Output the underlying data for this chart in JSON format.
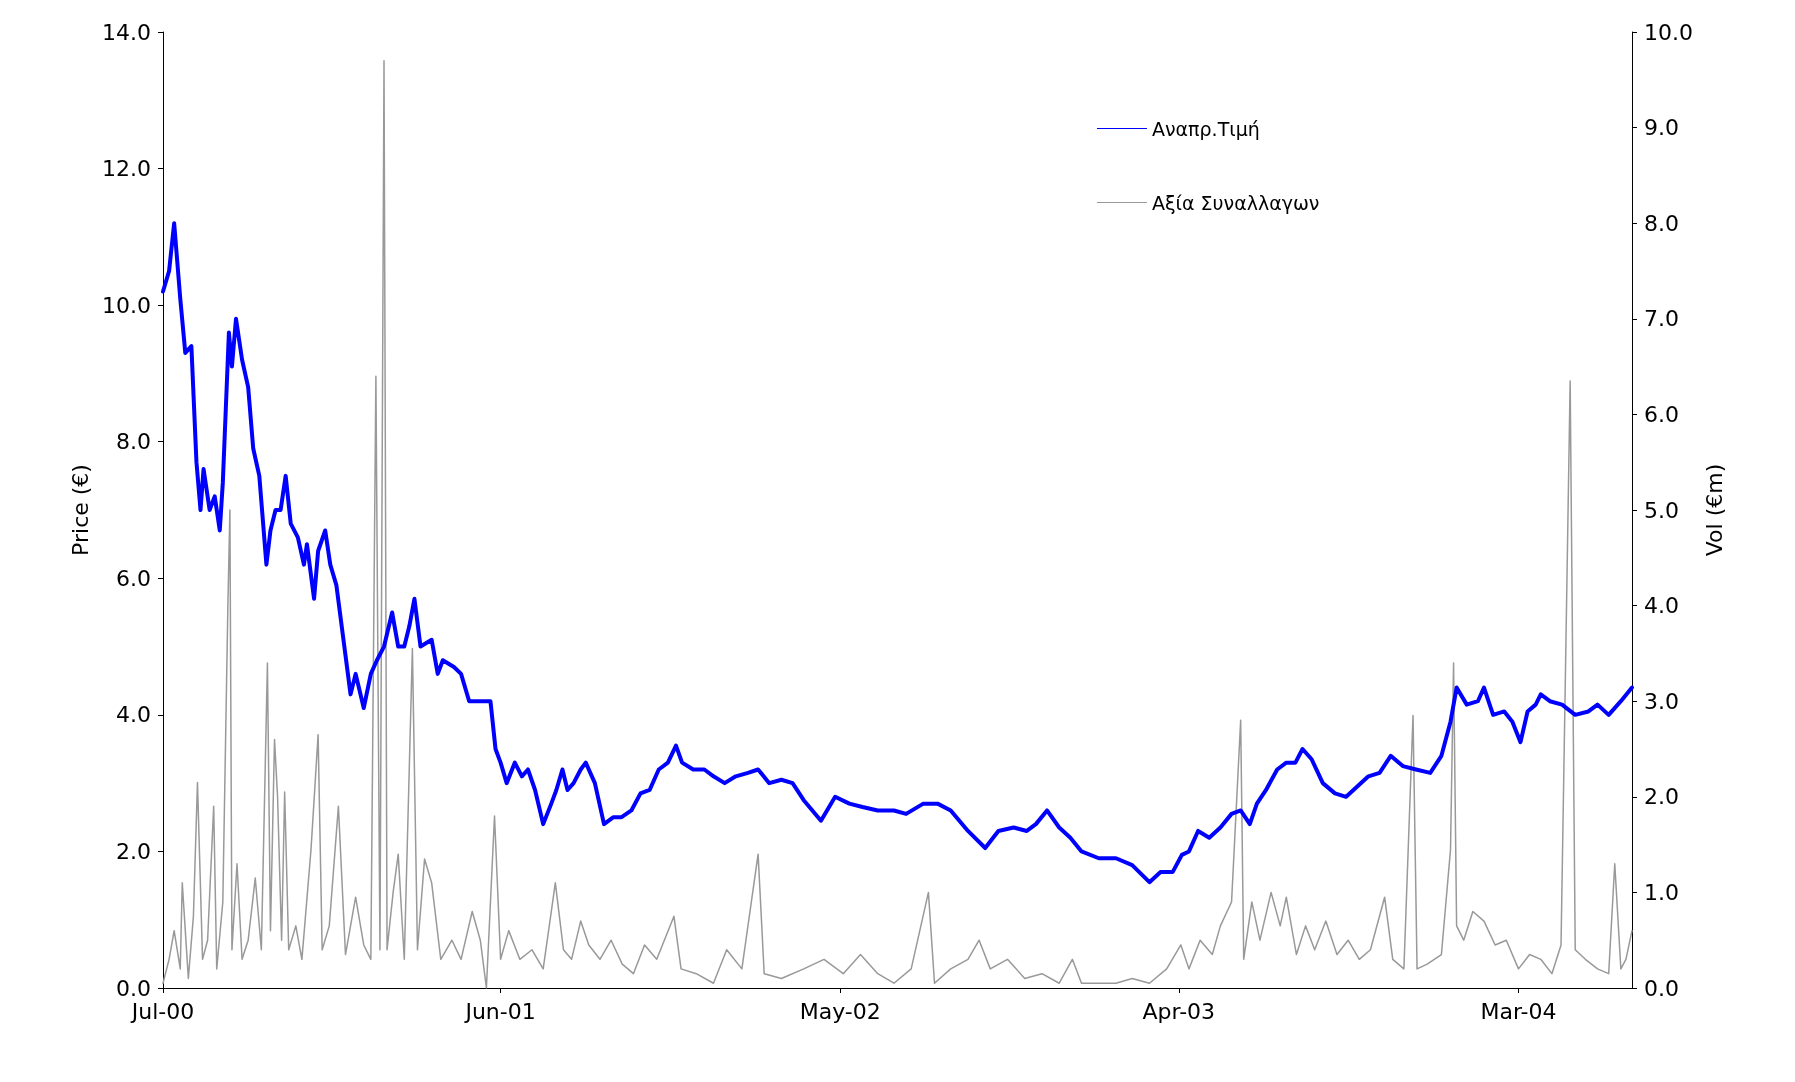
{
  "chart_data": {
    "type": "line",
    "ylabel": "Price (€)",
    "y2label": "Vol (€m)",
    "xlim": [
      "2000-07-03",
      "2004-06-21"
    ],
    "xticks": [
      {
        "value": "2000-07-03",
        "label": "Jul-00"
      },
      {
        "value": "2001-06-01",
        "label": "Jun-01"
      },
      {
        "value": "2002-05-02",
        "label": "May-02"
      },
      {
        "value": "2003-04-01",
        "label": "Apr-03"
      },
      {
        "value": "2004-03-01",
        "label": "Mar-04"
      }
    ],
    "ylim": [
      0,
      14
    ],
    "yticks": [
      {
        "value": 0,
        "label": "0.0"
      },
      {
        "value": 2,
        "label": "2.0"
      },
      {
        "value": 4,
        "label": "4.0"
      },
      {
        "value": 6,
        "label": "6.0"
      },
      {
        "value": 8,
        "label": "8.0"
      },
      {
        "value": 10,
        "label": "10.0"
      },
      {
        "value": 12,
        "label": "12.0"
      },
      {
        "value": 14,
        "label": "14.0"
      }
    ],
    "y2lim": [
      0,
      10
    ],
    "y2ticks": [
      {
        "value": 0,
        "label": "0.0"
      },
      {
        "value": 1,
        "label": "1.0"
      },
      {
        "value": 2,
        "label": "2.0"
      },
      {
        "value": 3,
        "label": "3.0"
      },
      {
        "value": 4,
        "label": "4.0"
      },
      {
        "value": 5,
        "label": "5.0"
      },
      {
        "value": 6,
        "label": "6.0"
      },
      {
        "value": 7,
        "label": "7.0"
      },
      {
        "value": 8,
        "label": "8.0"
      },
      {
        "value": 9,
        "label": "9.0"
      },
      {
        "value": 10,
        "label": "10.0"
      }
    ],
    "grid": false,
    "legend": "top right",
    "marker": "none",
    "line_style": "solid",
    "series": [
      {
        "name": "Αναπρ.Τιμή",
        "color": "#0000ff",
        "x": [
          "2000-07-03",
          "2000-07-09",
          "2000-07-14",
          "2000-07-20",
          "2000-07-25",
          "2000-07-31",
          "2000-08-05",
          "2000-08-09",
          "2000-08-12",
          "2000-08-18",
          "2000-08-23",
          "2000-08-28",
          "2000-08-31",
          "2000-09-06",
          "2000-09-09",
          "2000-09-13",
          "2000-09-19",
          "2000-09-25",
          "2000-09-30",
          "2000-10-06",
          "2000-10-13",
          "2000-10-17",
          "2000-10-22",
          "2000-10-27",
          "2000-11-01",
          "2000-11-06",
          "2000-11-13",
          "2000-11-19",
          "2000-11-22",
          "2000-11-29",
          "2000-12-03",
          "2000-12-10",
          "2000-12-15",
          "2000-12-21",
          "2000-12-28",
          "2001-01-04",
          "2001-01-09",
          "2001-01-17",
          "2001-01-24",
          "2001-01-30",
          "2001-02-06",
          "2001-02-14",
          "2001-02-20",
          "2001-02-26",
          "2001-03-03",
          "2001-03-08",
          "2001-03-14",
          "2001-03-25",
          "2001-03-31",
          "2001-04-05",
          "2001-04-16",
          "2001-04-23",
          "2001-05-01",
          "2001-05-09",
          "2001-05-22",
          "2001-05-27",
          "2001-06-01",
          "2001-06-07",
          "2001-06-15",
          "2001-06-22",
          "2001-06-28",
          "2001-07-05",
          "2001-07-13",
          "2001-07-21",
          "2001-07-26",
          "2001-08-01",
          "2001-08-06",
          "2001-08-12",
          "2001-08-19",
          "2001-08-24",
          "2001-09-02",
          "2001-09-11",
          "2001-09-20",
          "2001-09-28",
          "2001-10-08",
          "2001-10-17",
          "2001-10-26",
          "2001-11-04",
          "2001-11-13",
          "2001-11-21",
          "2001-11-27",
          "2001-12-08",
          "2001-12-19",
          "2001-12-28",
          "2002-01-08",
          "2002-01-19",
          "2002-01-31",
          "2002-02-10",
          "2002-02-21",
          "2002-03-05",
          "2002-03-16",
          "2002-03-27",
          "2002-04-13",
          "2002-04-27",
          "2002-05-11",
          "2002-05-24",
          "2002-06-08",
          "2002-06-24",
          "2002-07-06",
          "2002-07-23",
          "2002-08-06",
          "2002-08-19",
          "2002-09-05",
          "2002-09-22",
          "2002-10-05",
          "2002-10-20",
          "2002-11-02",
          "2002-11-11",
          "2002-11-22",
          "2002-12-04",
          "2002-12-15",
          "2002-12-26",
          "2003-01-12",
          "2003-01-29",
          "2003-02-14",
          "2003-03-03",
          "2003-03-14",
          "2003-03-26",
          "2003-04-04",
          "2003-04-11",
          "2003-04-20",
          "2003-05-01",
          "2003-05-12",
          "2003-05-23",
          "2003-06-01",
          "2003-06-10",
          "2003-06-17",
          "2003-06-26",
          "2003-07-07",
          "2003-07-16",
          "2003-07-25",
          "2003-08-01",
          "2003-08-10",
          "2003-08-21",
          "2003-09-02",
          "2003-09-13",
          "2003-09-24",
          "2003-10-05",
          "2003-10-16",
          "2003-10-27",
          "2003-11-08",
          "2003-11-21",
          "2003-12-05",
          "2003-12-16",
          "2003-12-25",
          "2003-12-31",
          "2004-01-10",
          "2004-01-21",
          "2004-01-27",
          "2004-02-05",
          "2004-02-16",
          "2004-02-24",
          "2004-03-03",
          "2004-03-10",
          "2004-03-18",
          "2004-03-23",
          "2004-04-01",
          "2004-04-13",
          "2004-04-26",
          "2004-05-09",
          "2004-05-18",
          "2004-05-29",
          "2004-06-10",
          "2004-06-21"
        ],
        "values": [
          10.2,
          10.5,
          11.2,
          10.1,
          9.3,
          9.4,
          7.7,
          7.0,
          7.6,
          7.0,
          7.2,
          6.7,
          7.4,
          9.6,
          9.1,
          9.8,
          9.2,
          8.8,
          7.9,
          7.5,
          6.2,
          6.7,
          7.0,
          7.0,
          7.5,
          6.8,
          6.6,
          6.2,
          6.5,
          5.7,
          6.4,
          6.7,
          6.2,
          5.9,
          5.1,
          4.3,
          4.6,
          4.1,
          4.6,
          4.8,
          5.0,
          5.5,
          5.0,
          5.0,
          5.3,
          5.7,
          5.0,
          5.1,
          4.6,
          4.8,
          4.7,
          4.6,
          4.2,
          4.2,
          4.2,
          3.5,
          3.3,
          3.0,
          3.3,
          3.1,
          3.2,
          2.9,
          2.4,
          2.7,
          2.9,
          3.2,
          2.9,
          3.0,
          3.2,
          3.3,
          3.0,
          2.4,
          2.5,
          2.5,
          2.6,
          2.85,
          2.9,
          3.2,
          3.3,
          3.55,
          3.3,
          3.2,
          3.2,
          3.1,
          3.0,
          3.1,
          3.15,
          3.2,
          3.0,
          3.05,
          3.0,
          2.75,
          2.45,
          2.8,
          2.7,
          2.65,
          2.6,
          2.6,
          2.55,
          2.7,
          2.7,
          2.6,
          2.3,
          2.05,
          2.3,
          2.35,
          2.3,
          2.4,
          2.6,
          2.35,
          2.2,
          2.0,
          1.9,
          1.9,
          1.8,
          1.55,
          1.7,
          1.7,
          1.95,
          2.0,
          2.3,
          2.2,
          2.35,
          2.55,
          2.6,
          2.4,
          2.7,
          2.9,
          3.2,
          3.3,
          3.3,
          3.5,
          3.35,
          3.0,
          2.85,
          2.8,
          2.95,
          3.1,
          3.15,
          3.4,
          3.25,
          3.2,
          3.15,
          3.4,
          3.9,
          4.4,
          4.15,
          4.2,
          4.4,
          4.0,
          4.05,
          3.9,
          3.6,
          4.05,
          4.15,
          4.3,
          4.2,
          4.15,
          4.0,
          4.05,
          4.15,
          4.0,
          4.2,
          4.4
        ]
      },
      {
        "name": "Αξία Συναλλαγων",
        "color": "#999999",
        "axis": "y2",
        "x": [
          "2000-07-03",
          "2000-07-09",
          "2000-07-14",
          "2000-07-20",
          "2000-07-22",
          "2000-07-28",
          "2000-08-02",
          "2000-08-06",
          "2000-08-11",
          "2000-08-16",
          "2000-08-22",
          "2000-08-25",
          "2000-08-31",
          "2000-09-05",
          "2000-09-07",
          "2000-09-09",
          "2000-09-14",
          "2000-09-19",
          "2000-09-25",
          "2000-10-02",
          "2000-10-08",
          "2000-10-14",
          "2000-10-17",
          "2000-10-21",
          "2000-10-24",
          "2000-10-28",
          "2000-10-31",
          "2000-11-04",
          "2000-11-11",
          "2000-11-17",
          "2000-11-26",
          "2000-12-03",
          "2000-12-07",
          "2000-12-14",
          "2000-12-23",
          "2000-12-30",
          "2001-01-09",
          "2001-01-17",
          "2001-01-24",
          "2001-01-29",
          "2001-02-02",
          "2001-02-06",
          "2001-02-09",
          "2001-02-15",
          "2001-02-20",
          "2001-02-26",
          "2001-03-06",
          "2001-03-11",
          "2001-03-18",
          "2001-03-25",
          "2001-04-03",
          "2001-04-14",
          "2001-04-23",
          "2001-05-04",
          "2001-05-12",
          "2001-05-18",
          "2001-05-26",
          "2001-06-01",
          "2001-06-09",
          "2001-06-20",
          "2001-07-02",
          "2001-07-13",
          "2001-07-25",
          "2001-08-02",
          "2001-08-10",
          "2001-08-19",
          "2001-08-27",
          "2001-09-07",
          "2001-09-18",
          "2001-09-29",
          "2001-10-10",
          "2001-10-21",
          "2001-11-02",
          "2001-11-19",
          "2001-11-26",
          "2001-12-11",
          "2001-12-28",
          "2002-01-10",
          "2002-01-25",
          "2002-02-10",
          "2002-02-16",
          "2002-03-05",
          "2002-03-27",
          "2002-04-16",
          "2002-05-05",
          "2002-05-22",
          "2002-06-08",
          "2002-06-24",
          "2002-07-11",
          "2002-07-28",
          "2002-08-03",
          "2002-08-19",
          "2002-09-05",
          "2002-09-16",
          "2002-09-27",
          "2002-10-14",
          "2002-10-31",
          "2002-11-17",
          "2002-12-04",
          "2002-12-17",
          "2002-12-26",
          "2003-01-12",
          "2003-01-29",
          "2003-02-14",
          "2003-03-03",
          "2003-03-20",
          "2003-04-03",
          "2003-04-11",
          "2003-04-22",
          "2003-05-04",
          "2003-05-12",
          "2003-05-23",
          "2003-06-01",
          "2003-06-04",
          "2003-06-12",
          "2003-06-20",
          "2003-07-01",
          "2003-07-10",
          "2003-07-16",
          "2003-07-26",
          "2003-08-04",
          "2003-08-13",
          "2003-08-24",
          "2003-09-04",
          "2003-09-15",
          "2003-09-26",
          "2003-10-07",
          "2003-10-21",
          "2003-10-29",
          "2003-11-09",
          "2003-11-18",
          "2003-11-22",
          "2003-12-02",
          "2003-12-16",
          "2003-12-25",
          "2003-12-28",
          "2003-12-31",
          "2004-01-07",
          "2004-01-16",
          "2004-01-27",
          "2004-02-07",
          "2004-02-18",
          "2004-03-01",
          "2004-03-12",
          "2004-03-23",
          "2004-04-03",
          "2004-04-12",
          "2004-04-21",
          "2004-04-26",
          "2004-05-06",
          "2004-05-18",
          "2004-05-29",
          "2004-06-04",
          "2004-06-10",
          "2004-06-15",
          "2004-06-21"
        ],
        "values": [
          0.05,
          0.3,
          0.6,
          0.2,
          1.1,
          0.1,
          0.75,
          2.15,
          0.3,
          0.5,
          1.9,
          0.2,
          0.9,
          4.0,
          5.0,
          0.4,
          1.3,
          0.3,
          0.5,
          1.15,
          0.4,
          3.4,
          0.6,
          2.6,
          2.0,
          0.5,
          2.05,
          0.4,
          0.65,
          0.3,
          1.45,
          2.65,
          0.4,
          0.65,
          1.9,
          0.35,
          0.95,
          0.45,
          0.3,
          6.4,
          0.4,
          9.7,
          0.4,
          1.0,
          1.4,
          0.3,
          3.55,
          0.4,
          1.35,
          1.1,
          0.3,
          0.5,
          0.3,
          0.8,
          0.5,
          0.0,
          1.8,
          0.3,
          0.6,
          0.3,
          0.4,
          0.2,
          1.1,
          0.4,
          0.3,
          0.7,
          0.45,
          0.3,
          0.5,
          0.25,
          0.15,
          0.45,
          0.3,
          0.75,
          0.2,
          0.15,
          0.05,
          0.4,
          0.2,
          1.4,
          0.15,
          0.1,
          0.2,
          0.3,
          0.15,
          0.35,
          0.15,
          0.05,
          0.2,
          1.0,
          0.05,
          0.2,
          0.3,
          0.5,
          0.2,
          0.3,
          0.1,
          0.15,
          0.05,
          0.3,
          0.05,
          0.05,
          0.05,
          0.1,
          0.05,
          0.2,
          0.45,
          0.2,
          0.5,
          0.35,
          0.65,
          0.9,
          2.8,
          0.3,
          0.9,
          0.5,
          1.0,
          0.65,
          0.95,
          0.35,
          0.65,
          0.4,
          0.7,
          0.35,
          0.5,
          0.3,
          0.4,
          0.95,
          0.3,
          0.2,
          2.85,
          0.2,
          0.25,
          0.35,
          1.45,
          3.4,
          0.65,
          0.5,
          0.8,
          0.7,
          0.45,
          0.5,
          0.2,
          0.35,
          0.3,
          0.15,
          0.45,
          6.35,
          0.4,
          0.3,
          0.2,
          0.15,
          1.3,
          0.2,
          0.3,
          0.6
        ]
      }
    ]
  }
}
